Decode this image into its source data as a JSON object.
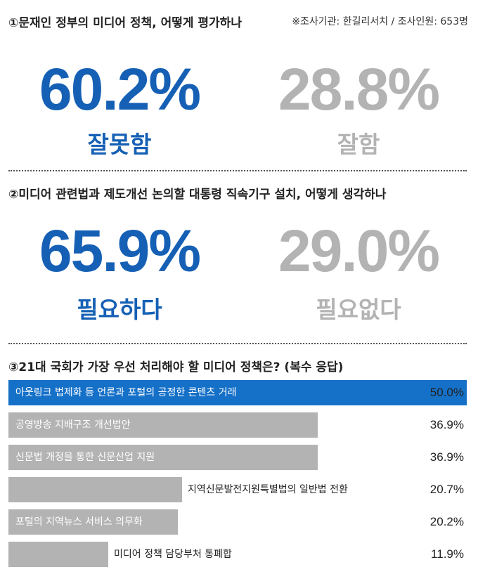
{
  "source_note": "※조사기관: 한길리서치 / 조사인원: 653명",
  "q1": {
    "title": "①문재인 정부의 미디어 정책, 어떻게 평가하나",
    "left": {
      "value": "60.2%",
      "label": "잘못함"
    },
    "right": {
      "value": "28.8%",
      "label": "잘함"
    }
  },
  "q2": {
    "title": "②미디어 관련법과 제도개선 논의할 대통령 직속기구 설치, 어떻게 생각하나",
    "left": {
      "value": "65.9%",
      "label": "필요하다"
    },
    "right": {
      "value": "29.0%",
      "label": "필요없다"
    }
  },
  "q3": {
    "title": "③21대 국회가 가장 우선 처리해야 할 미디어 정책은? (복수 응답)"
  },
  "colors": {
    "accent": "#1560b5",
    "bar_highlight": "#1570c8",
    "bar_default": "#b3b3b3"
  },
  "chart_data": [
    {
      "type": "table",
      "categories": [
        "잘못함",
        "잘함"
      ],
      "values": [
        60.2,
        28.8
      ]
    },
    {
      "type": "table",
      "categories": [
        "필요하다",
        "필요없다"
      ],
      "values": [
        65.9,
        29.0
      ]
    },
    {
      "type": "bar",
      "orientation": "horizontal",
      "categories": [
        "아웃링크 법제화 등 언론과 포털의 공정한 콘텐츠 거래",
        "공영방송 지배구조 개선법안",
        "신문법 개정을 통한 신문산업 지원",
        "지역신문발전지원특별법의 일반법 전환",
        "포털의 지역뉴스 서비스 의무화",
        "미디어 정책 담당부처 통폐합"
      ],
      "values": [
        50.0,
        36.9,
        36.9,
        20.7,
        20.2,
        11.9
      ],
      "value_labels": [
        "50.0%",
        "36.9%",
        "36.9%",
        "20.7%",
        "20.2%",
        "11.9%"
      ],
      "xlim": [
        0,
        50
      ]
    }
  ]
}
